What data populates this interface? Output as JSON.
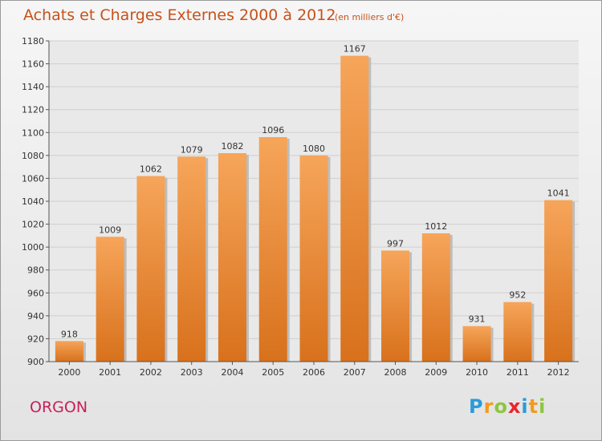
{
  "header": {
    "title": "Achats et Charges Externes 2000 à 2012",
    "subtitle": "(en milliers d'€)"
  },
  "footer": {
    "place": "ORGON",
    "logo": "Proxiti"
  },
  "colors": {
    "title": "#c8511a",
    "place": "#c81e5a",
    "bar_top": "#f6a55a",
    "bar_bottom": "#d8711c"
  },
  "chart_data": {
    "type": "bar",
    "title": "Achats et Charges Externes 2000 à 2012",
    "subtitle": "(en milliers d'€)",
    "categories": [
      "2000",
      "2001",
      "2002",
      "2003",
      "2004",
      "2005",
      "2006",
      "2007",
      "2008",
      "2009",
      "2010",
      "2011",
      "2012"
    ],
    "values": [
      918,
      1009,
      1062,
      1079,
      1082,
      1096,
      1080,
      1167,
      997,
      1012,
      931,
      952,
      1041
    ],
    "ylim": [
      900,
      1180
    ],
    "yticks": [
      900,
      920,
      940,
      960,
      980,
      1000,
      1020,
      1040,
      1060,
      1080,
      1100,
      1120,
      1140,
      1160,
      1180
    ],
    "grid": true,
    "data_labels": true
  }
}
